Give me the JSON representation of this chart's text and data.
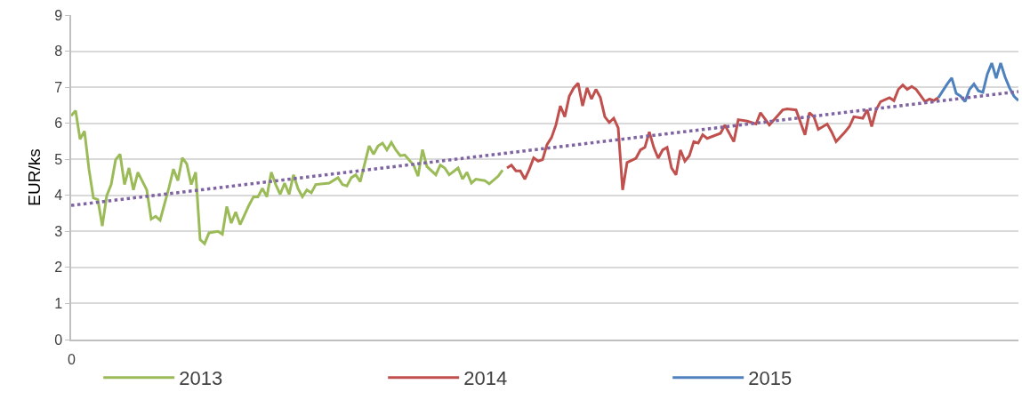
{
  "chart_data": {
    "type": "line",
    "ylabel": "EUR/ks",
    "annotations": [
      "0"
    ],
    "ylim": [
      0,
      9
    ],
    "yticks": [
      0,
      1,
      2,
      3,
      4,
      5,
      6,
      7,
      8,
      9
    ],
    "grid": "y",
    "legend": "bottom",
    "marker": "none",
    "categories": [
      null,
      null,
      null,
      null,
      null,
      null,
      null,
      null,
      null,
      null,
      null,
      null,
      null,
      null,
      null,
      null,
      null,
      null,
      null,
      null,
      null,
      null,
      null,
      null,
      null,
      null,
      null,
      null,
      null,
      null,
      null,
      null,
      null,
      null,
      null,
      null,
      null,
      null,
      null,
      null,
      null,
      null,
      null,
      null,
      null,
      null,
      null,
      null,
      null,
      null,
      null,
      null,
      null,
      null,
      null,
      null,
      null,
      null,
      null,
      null,
      null,
      null,
      null,
      null,
      null,
      null,
      null,
      null,
      null,
      null,
      null,
      null,
      null,
      null,
      null,
      null,
      null,
      null,
      null,
      null,
      null,
      null,
      null,
      null,
      null,
      null,
      null,
      null,
      null,
      null,
      null,
      null,
      null,
      null,
      null,
      null,
      null,
      null,
      null,
      null,
      null,
      null,
      null,
      null,
      null,
      null,
      null,
      null,
      null,
      null,
      null,
      null,
      null,
      null,
      null,
      null,
      null,
      null,
      null,
      null,
      null,
      null,
      null,
      null,
      null,
      null,
      null,
      null,
      null,
      null,
      null,
      null,
      null,
      null,
      null,
      null,
      null,
      null,
      null,
      null,
      null,
      null,
      null,
      null,
      null,
      null,
      null,
      null,
      null,
      null,
      null,
      null,
      null,
      null,
      null,
      null,
      null,
      null,
      null,
      null,
      null,
      null,
      null,
      null,
      null,
      null,
      null,
      null,
      null,
      null,
      null,
      null,
      null,
      null,
      null,
      null,
      null,
      null,
      null,
      null,
      null,
      null,
      null,
      null,
      null,
      null,
      null,
      null,
      null,
      null,
      null,
      null,
      null,
      null,
      null,
      null,
      null,
      null,
      null,
      null,
      null,
      null,
      null,
      null,
      null,
      null,
      null,
      null,
      null,
      null,
      null,
      null,
      null,
      null
    ],
    "series": [
      {
        "name": "2013",
        "color": "#9bbb59",
        "line_style": "solid",
        "values": [
          6.21,
          6.35,
          5.56,
          5.78,
          4.73,
          3.93,
          3.88,
          3.15,
          3.99,
          4.3,
          4.99,
          5.14,
          4.3,
          4.76,
          4.15,
          4.64,
          null,
          4.15,
          3.34,
          3.42,
          3.31,
          null,
          4.22,
          4.73,
          4.41,
          5.04,
          4.87,
          4.3,
          4.64,
          2.77,
          2.66,
          2.96,
          null,
          3.0,
          2.92,
          3.69,
          3.23,
          3.54,
          3.19,
          null,
          3.73,
          3.96,
          3.96,
          4.19,
          3.96,
          4.64,
          4.3,
          4.03,
          4.34,
          4.03,
          4.57,
          4.19,
          3.96,
          4.15,
          4.07,
          4.3,
          null,
          null,
          4.34,
          null,
          4.49,
          4.3,
          4.26,
          4.49,
          4.57,
          4.38,
          null,
          5.37,
          5.14,
          5.37,
          5.45,
          5.26,
          5.47,
          5.26,
          5.1,
          5.12,
          null,
          4.84,
          4.53,
          5.27,
          4.8,
          null,
          4.57,
          4.84,
          4.76,
          4.57,
          null,
          4.76,
          4.45,
          4.64,
          4.34,
          4.45,
          null,
          4.41,
          4.32,
          null,
          4.53,
          4.7,
          null,
          null,
          null,
          null,
          null,
          null,
          null,
          null,
          null,
          null,
          null,
          null,
          null,
          null,
          null,
          null,
          null,
          null,
          null,
          null,
          null,
          null,
          null,
          null,
          null,
          null,
          null,
          null,
          null,
          null,
          null,
          null,
          null,
          null,
          null,
          null,
          null,
          null,
          null,
          null,
          null,
          null,
          null,
          null,
          null,
          null,
          null,
          null,
          null,
          null,
          null,
          null,
          null,
          null,
          null,
          null,
          null,
          null,
          null,
          null,
          null,
          null,
          null,
          null,
          null,
          null,
          null,
          null,
          null,
          null,
          null,
          null,
          null,
          null,
          null,
          null,
          null,
          null,
          null,
          null,
          null,
          null,
          null,
          null,
          null,
          null,
          null,
          null,
          null,
          null,
          null,
          null,
          null,
          null,
          null,
          null,
          null,
          null,
          null,
          null,
          null,
          null,
          null,
          null,
          null,
          null,
          null,
          null,
          null,
          null,
          null,
          null,
          null,
          null,
          null,
          null
        ]
      },
      {
        "name": "2014",
        "color": "#c0504d",
        "line_style": "solid",
        "values": [
          null,
          null,
          null,
          null,
          null,
          null,
          null,
          null,
          null,
          null,
          null,
          null,
          null,
          null,
          null,
          null,
          null,
          null,
          null,
          null,
          null,
          null,
          null,
          null,
          null,
          null,
          null,
          null,
          null,
          null,
          null,
          null,
          null,
          null,
          null,
          null,
          null,
          null,
          null,
          null,
          null,
          null,
          null,
          null,
          null,
          null,
          null,
          null,
          null,
          null,
          null,
          null,
          null,
          null,
          null,
          null,
          null,
          null,
          null,
          null,
          null,
          null,
          null,
          null,
          null,
          null,
          null,
          null,
          null,
          null,
          null,
          null,
          null,
          null,
          null,
          null,
          null,
          null,
          null,
          null,
          null,
          null,
          null,
          null,
          null,
          null,
          null,
          null,
          null,
          null,
          null,
          null,
          null,
          null,
          null,
          null,
          null,
          null,
          4.76,
          4.84,
          4.68,
          4.68,
          4.45,
          4.72,
          5.04,
          4.95,
          4.99,
          5.41,
          5.6,
          5.95,
          6.48,
          6.18,
          6.75,
          6.98,
          7.11,
          6.48,
          6.98,
          6.67,
          6.94,
          6.71,
          6.18,
          6.02,
          6.14,
          5.87,
          4.15,
          4.91,
          null,
          5.03,
          5.26,
          5.33,
          5.76,
          5.33,
          5.03,
          5.26,
          5.33,
          4.76,
          4.57,
          5.26,
          4.95,
          5.1,
          5.49,
          5.45,
          5.68,
          5.58,
          null,
          null,
          5.72,
          5.95,
          null,
          5.49,
          6.1,
          null,
          6.06,
          null,
          5.98,
          6.29,
          null,
          5.95,
          null,
          null,
          6.37,
          6.4,
          null,
          6.37,
          null,
          5.68,
          6.29,
          6.18,
          5.83,
          null,
          5.98,
          5.76,
          5.49,
          null,
          5.76,
          5.91,
          6.18,
          null,
          6.14,
          6.37,
          5.91,
          6.37,
          6.6,
          null,
          6.71,
          6.63,
          6.94,
          7.06,
          6.94,
          7.02,
          6.94,
          null,
          6.6,
          6.67,
          6.63,
          6.71,
          null,
          null,
          null,
          null,
          null,
          null,
          null,
          null,
          null,
          null,
          null,
          null,
          null,
          null,
          null,
          null,
          null,
          null
        ]
      },
      {
        "name": "2015",
        "color": "#4f81bd",
        "line_style": "solid",
        "values": [
          null,
          null,
          null,
          null,
          null,
          null,
          null,
          null,
          null,
          null,
          null,
          null,
          null,
          null,
          null,
          null,
          null,
          null,
          null,
          null,
          null,
          null,
          null,
          null,
          null,
          null,
          null,
          null,
          null,
          null,
          null,
          null,
          null,
          null,
          null,
          null,
          null,
          null,
          null,
          null,
          null,
          null,
          null,
          null,
          null,
          null,
          null,
          null,
          null,
          null,
          null,
          null,
          null,
          null,
          null,
          null,
          null,
          null,
          null,
          null,
          null,
          null,
          null,
          null,
          null,
          null,
          null,
          null,
          null,
          null,
          null,
          null,
          null,
          null,
          null,
          null,
          null,
          null,
          null,
          null,
          null,
          null,
          null,
          null,
          null,
          null,
          null,
          null,
          null,
          null,
          null,
          null,
          null,
          null,
          null,
          null,
          null,
          null,
          null,
          null,
          null,
          null,
          null,
          null,
          null,
          null,
          null,
          null,
          null,
          null,
          null,
          null,
          null,
          null,
          null,
          null,
          null,
          null,
          null,
          null,
          null,
          null,
          null,
          null,
          null,
          null,
          null,
          null,
          null,
          null,
          null,
          null,
          null,
          null,
          null,
          null,
          null,
          null,
          null,
          null,
          null,
          null,
          null,
          null,
          null,
          null,
          null,
          null,
          null,
          null,
          null,
          null,
          null,
          null,
          null,
          null,
          null,
          null,
          null,
          null,
          null,
          null,
          null,
          null,
          null,
          null,
          null,
          null,
          null,
          null,
          null,
          null,
          null,
          null,
          null,
          null,
          null,
          null,
          null,
          null,
          null,
          null,
          null,
          null,
          null,
          null,
          null,
          null,
          null,
          null,
          null,
          null,
          null,
          null,
          null,
          6.71,
          null,
          7.09,
          7.26,
          6.83,
          6.75,
          6.6,
          6.94,
          7.09,
          6.9,
          6.86,
          7.36,
          7.67,
          7.25,
          7.67,
          7.28,
          6.98,
          6.75,
          6.63
        ]
      },
      {
        "color": "#8064a2",
        "line_style": "dotted",
        "values": [
          3.72,
          null,
          null,
          null,
          null,
          null,
          null,
          null,
          null,
          null,
          null,
          null,
          null,
          null,
          null,
          null,
          null,
          null,
          null,
          null,
          null,
          null,
          null,
          null,
          null,
          null,
          null,
          null,
          null,
          null,
          null,
          null,
          null,
          null,
          null,
          null,
          null,
          null,
          null,
          null,
          null,
          null,
          null,
          null,
          null,
          null,
          null,
          null,
          null,
          null,
          null,
          null,
          null,
          null,
          null,
          null,
          null,
          null,
          null,
          null,
          null,
          null,
          null,
          null,
          null,
          null,
          null,
          null,
          null,
          null,
          null,
          null,
          null,
          null,
          null,
          null,
          null,
          null,
          null,
          null,
          null,
          null,
          null,
          null,
          null,
          null,
          null,
          null,
          null,
          null,
          null,
          null,
          null,
          null,
          null,
          null,
          null,
          null,
          null,
          null,
          null,
          null,
          null,
          null,
          null,
          null,
          null,
          null,
          null,
          null,
          null,
          null,
          null,
          null,
          null,
          null,
          null,
          null,
          null,
          null,
          null,
          null,
          null,
          null,
          null,
          null,
          null,
          null,
          null,
          null,
          null,
          null,
          null,
          null,
          null,
          null,
          null,
          null,
          null,
          null,
          null,
          null,
          null,
          null,
          null,
          null,
          null,
          null,
          null,
          null,
          null,
          null,
          null,
          null,
          null,
          null,
          null,
          null,
          null,
          null,
          null,
          null,
          null,
          null,
          null,
          null,
          null,
          null,
          null,
          null,
          null,
          null,
          null,
          null,
          null,
          null,
          null,
          null,
          null,
          null,
          null,
          null,
          null,
          null,
          null,
          null,
          null,
          null,
          null,
          null,
          null,
          null,
          null,
          null,
          null,
          null,
          null,
          null,
          null,
          null,
          null,
          null,
          null,
          null,
          null,
          null,
          null,
          null,
          null,
          null,
          null,
          null,
          null,
          6.88
        ]
      }
    ]
  }
}
